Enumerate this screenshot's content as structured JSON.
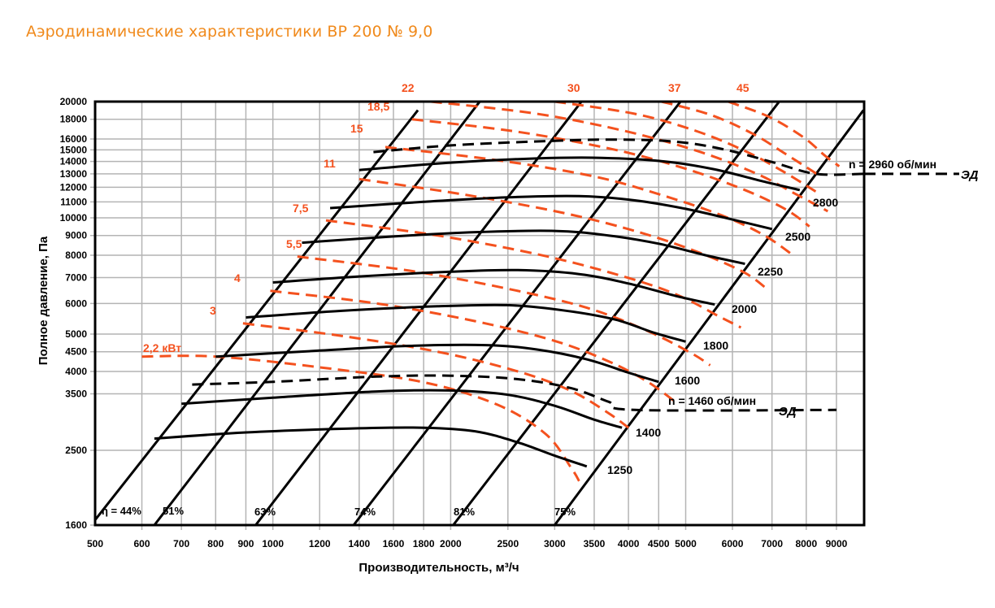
{
  "title": "Аэродинамические характеристики ВР 200 № 9,0",
  "colors": {
    "title": "#f08a1c",
    "power": "#f4511e",
    "curves": "#000000",
    "grid": "#b4b4b4"
  },
  "chart_data": {
    "type": "line",
    "title": "Аэродинамические характеристики ВР 200 № 9,0",
    "xlabel": "Производительность, м³/ч",
    "ylabel": "Полное давление, Па",
    "xscale": "log",
    "yscale": "log",
    "xlim": [
      500,
      10000
    ],
    "ylim": [
      1600,
      20000
    ],
    "grid": true,
    "x_ticks": [
      500,
      600,
      700,
      800,
      900,
      1000,
      1200,
      1400,
      1600,
      1800,
      2000,
      2500,
      3000,
      3500,
      4000,
      4500,
      5000,
      6000,
      7000,
      8000,
      9000
    ],
    "x_tick_labels": [
      "500",
      "600",
      "700",
      "800",
      "900",
      "1000",
      "1200",
      "1400",
      "1600",
      "1800",
      "2000",
      "2500",
      "3000",
      "3500",
      "4000",
      "4500",
      "5000",
      "6000",
      "7000",
      "8000",
      "9000"
    ],
    "y_ticks": [
      1600,
      2500,
      3500,
      4000,
      4500,
      5000,
      6000,
      7000,
      8000,
      9000,
      10000,
      11000,
      12000,
      13000,
      14000,
      15000,
      16000,
      18000,
      20000
    ],
    "y_tick_labels": [
      "1600",
      "2500",
      "3500",
      "4000",
      "4500",
      "5000",
      "6000",
      "7000",
      "8000",
      "9000",
      "10000",
      "11000",
      "12000",
      "13000",
      "14000",
      "15000",
      "16000",
      "18000",
      "20000"
    ],
    "speed_curves": [
      {
        "name": "1250",
        "label": "1250",
        "dashed": false,
        "points": [
          [
            630,
            2680
          ],
          [
            900,
            2780
          ],
          [
            1400,
            2850
          ],
          [
            1800,
            2860
          ],
          [
            2200,
            2800
          ],
          [
            2600,
            2620
          ],
          [
            3000,
            2420
          ],
          [
            3400,
            2270
          ]
        ]
      },
      {
        "name": "1400",
        "label": "1400",
        "dashed": false,
        "points": [
          [
            700,
            3300
          ],
          [
            1000,
            3420
          ],
          [
            1500,
            3550
          ],
          [
            2000,
            3570
          ],
          [
            2500,
            3480
          ],
          [
            3000,
            3260
          ],
          [
            3500,
            3000
          ],
          [
            3900,
            2860
          ]
        ]
      },
      {
        "name": "1460 ЭД",
        "label": "n = 1460 об/мин",
        "dashed": true,
        "ed_label": "ЭД",
        "points": [
          [
            730,
            3700
          ],
          [
            1000,
            3760
          ],
          [
            1500,
            3880
          ],
          [
            2000,
            3900
          ],
          [
            2600,
            3820
          ],
          [
            3200,
            3620
          ],
          [
            3700,
            3340
          ],
          [
            4100,
            3180
          ],
          [
            9000,
            3180
          ]
        ]
      },
      {
        "name": "1600",
        "label": "1600",
        "dashed": false,
        "points": [
          [
            800,
            4370
          ],
          [
            1200,
            4530
          ],
          [
            1700,
            4660
          ],
          [
            2300,
            4680
          ],
          [
            2800,
            4560
          ],
          [
            3400,
            4300
          ],
          [
            4000,
            3970
          ],
          [
            4500,
            3760
          ]
        ]
      },
      {
        "name": "1800",
        "label": "1800",
        "dashed": false,
        "points": [
          [
            900,
            5520
          ],
          [
            1300,
            5740
          ],
          [
            1900,
            5900
          ],
          [
            2500,
            5940
          ],
          [
            3100,
            5760
          ],
          [
            3800,
            5450
          ],
          [
            4400,
            5050
          ],
          [
            5000,
            4780
          ]
        ]
      },
      {
        "name": "2000",
        "label": "2000",
        "dashed": false,
        "points": [
          [
            1000,
            6800
          ],
          [
            1400,
            7050
          ],
          [
            2000,
            7250
          ],
          [
            2600,
            7320
          ],
          [
            3300,
            7150
          ],
          [
            4000,
            6760
          ],
          [
            4800,
            6280
          ],
          [
            5600,
            5960
          ]
        ]
      },
      {
        "name": "2250",
        "label": "2250",
        "dashed": false,
        "points": [
          [
            1120,
            8620
          ],
          [
            1600,
            8950
          ],
          [
            2200,
            9180
          ],
          [
            3000,
            9250
          ],
          [
            3700,
            9000
          ],
          [
            4500,
            8570
          ],
          [
            5400,
            8000
          ],
          [
            6300,
            7600
          ]
        ]
      },
      {
        "name": "2500",
        "label": "2500",
        "dashed": false,
        "points": [
          [
            1250,
            10600
          ],
          [
            1800,
            11000
          ],
          [
            2500,
            11300
          ],
          [
            3300,
            11380
          ],
          [
            4100,
            11100
          ],
          [
            5000,
            10550
          ],
          [
            6000,
            9900
          ],
          [
            7000,
            9350
          ]
        ]
      },
      {
        "name": "2800",
        "label": "2800",
        "dashed": false,
        "points": [
          [
            1400,
            13300
          ],
          [
            2000,
            13900
          ],
          [
            2800,
            14250
          ],
          [
            3600,
            14300
          ],
          [
            4600,
            14000
          ],
          [
            5600,
            13350
          ],
          [
            6800,
            12400
          ],
          [
            7800,
            11800
          ]
        ]
      },
      {
        "name": "2960 ЭД",
        "label": "n = 2960 об/мин",
        "dashed": true,
        "ed_label": "ЭД",
        "points": [
          [
            1480,
            14800
          ],
          [
            2000,
            15400
          ],
          [
            2900,
            15800
          ],
          [
            3800,
            15950
          ],
          [
            4800,
            15750
          ],
          [
            5800,
            15050
          ],
          [
            7000,
            13950
          ],
          [
            8300,
            13000
          ],
          [
            10000,
            13000
          ]
        ]
      }
    ],
    "efficiency_lines": [
      {
        "label": "η = 44%",
        "points": [
          [
            500,
            1650
          ],
          [
            1760,
            19000
          ]
        ]
      },
      {
        "label": "51%",
        "points": [
          [
            630,
            1600
          ],
          [
            2240,
            20000
          ]
        ]
      },
      {
        "name": "63%",
        "label": "63%",
        "points": [
          [
            935,
            1600
          ],
          [
            3330,
            20000
          ]
        ]
      },
      {
        "label": "74%",
        "points": [
          [
            1370,
            1600
          ],
          [
            4900,
            20000
          ]
        ]
      },
      {
        "label": "81%",
        "points": [
          [
            2020,
            1600
          ],
          [
            7200,
            20000
          ]
        ]
      },
      {
        "label": "75%",
        "points": [
          [
            3000,
            1600
          ],
          [
            10000,
            19000
          ]
        ]
      }
    ],
    "power_curves": [
      {
        "label": "2,2 кВт",
        "points": [
          [
            600,
            4370
          ],
          [
            800,
            4370
          ],
          [
            1200,
            4100
          ],
          [
            1800,
            3750
          ],
          [
            2400,
            3280
          ],
          [
            2900,
            2750
          ],
          [
            3200,
            2250
          ],
          [
            3300,
            2080
          ]
        ]
      },
      {
        "label": "3",
        "points": [
          [
            890,
            5330
          ],
          [
            1300,
            4950
          ],
          [
            1900,
            4500
          ],
          [
            2600,
            4000
          ],
          [
            3200,
            3560
          ],
          [
            3700,
            3120
          ],
          [
            4000,
            2860
          ]
        ]
      },
      {
        "label": "4",
        "points": [
          [
            990,
            6470
          ],
          [
            1500,
            6000
          ],
          [
            2200,
            5400
          ],
          [
            3000,
            4800
          ],
          [
            3700,
            4250
          ],
          [
            4300,
            3770
          ],
          [
            4800,
            3340
          ]
        ]
      },
      {
        "label": "5,5",
        "points": [
          [
            1100,
            7940
          ],
          [
            1700,
            7300
          ],
          [
            2500,
            6550
          ],
          [
            3400,
            5850
          ],
          [
            4300,
            5100
          ],
          [
            5100,
            4470
          ],
          [
            5500,
            4150
          ]
        ]
      },
      {
        "label": "7,5",
        "points": [
          [
            1230,
            9850
          ],
          [
            1900,
            9000
          ],
          [
            2800,
            8050
          ],
          [
            3800,
            7150
          ],
          [
            4800,
            6350
          ],
          [
            5700,
            5550
          ],
          [
            6200,
            5200
          ]
        ]
      },
      {
        "label": "11",
        "points": [
          [
            1400,
            12600
          ],
          [
            2100,
            11500
          ],
          [
            3100,
            10300
          ],
          [
            4200,
            9150
          ],
          [
            5300,
            8100
          ],
          [
            6300,
            7200
          ],
          [
            6900,
            6500
          ]
        ]
      },
      {
        "label": "15",
        "points": [
          [
            1550,
            15250
          ],
          [
            2400,
            14100
          ],
          [
            3500,
            12800
          ],
          [
            4600,
            11400
          ],
          [
            5800,
            10100
          ],
          [
            6800,
            9000
          ],
          [
            7600,
            8000
          ]
        ]
      },
      {
        "label": "18,5",
        "points": [
          [
            1720,
            18000
          ],
          [
            2600,
            16700
          ],
          [
            3800,
            15000
          ],
          [
            5000,
            13400
          ],
          [
            6300,
            11800
          ],
          [
            7400,
            10500
          ],
          [
            8100,
            9500
          ]
        ]
      },
      {
        "label": "22",
        "points": [
          [
            1850,
            20000
          ],
          [
            2800,
            18600
          ],
          [
            4000,
            16700
          ],
          [
            5300,
            14800
          ],
          [
            6600,
            13000
          ],
          [
            7700,
            11500
          ],
          [
            8700,
            10400
          ]
        ]
      },
      {
        "label": "30",
        "points": [
          [
            3000,
            20000
          ],
          [
            4100,
            18600
          ],
          [
            5200,
            16800
          ],
          [
            6300,
            14900
          ],
          [
            7300,
            13200
          ],
          [
            8300,
            11700
          ]
        ]
      },
      {
        "label": "37",
        "points": [
          [
            4550,
            20000
          ],
          [
            5500,
            18500
          ],
          [
            6500,
            16500
          ],
          [
            7400,
            14600
          ],
          [
            8400,
            12900
          ]
        ]
      },
      {
        "label": "45",
        "points": [
          [
            5900,
            20000
          ],
          [
            6900,
            18300
          ],
          [
            7900,
            16200
          ],
          [
            8600,
            14500
          ],
          [
            9100,
            13600
          ]
        ]
      }
    ]
  }
}
